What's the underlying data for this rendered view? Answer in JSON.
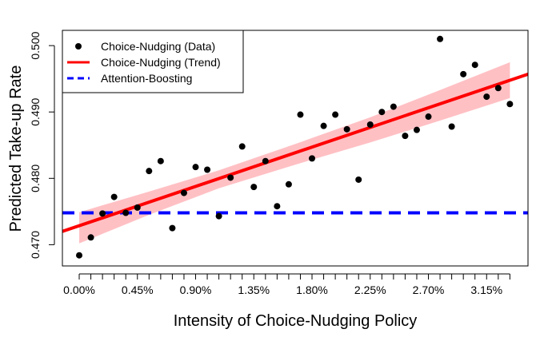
{
  "chart_data": {
    "type": "scatter",
    "title": "",
    "xlabel": "Intensity of Choice-Nudging Policy",
    "ylabel": "Predicted Take-up Rate",
    "xlim": [
      -0.0013,
      0.0347
    ],
    "ylim": [
      0.4668,
      0.5023
    ],
    "x_ticks": [
      {
        "value": 0.0,
        "label": "0.00%"
      },
      {
        "value": 0.0045,
        "label": "0.45%"
      },
      {
        "value": 0.009,
        "label": "0.90%"
      },
      {
        "value": 0.0135,
        "label": "1.35%"
      },
      {
        "value": 0.018,
        "label": "1.80%"
      },
      {
        "value": 0.0225,
        "label": "2.25%"
      },
      {
        "value": 0.027,
        "label": "2.70%"
      },
      {
        "value": 0.0315,
        "label": "3.15%"
      }
    ],
    "x_minor_ticks": [
      0.0,
      0.0009,
      0.0018,
      0.0027,
      0.0036,
      0.0045,
      0.0054,
      0.0063,
      0.0072,
      0.0081,
      0.009,
      0.0099,
      0.0108,
      0.0117,
      0.0126,
      0.0135,
      0.0144,
      0.0153,
      0.0162,
      0.0171,
      0.018,
      0.0189,
      0.0198,
      0.0207,
      0.0216,
      0.0225,
      0.0234,
      0.0243,
      0.0252,
      0.0261,
      0.027,
      0.0279,
      0.0288,
      0.0297,
      0.0306,
      0.0315,
      0.0324,
      0.0333
    ],
    "y_ticks": [
      {
        "value": 0.47,
        "label": "0.470"
      },
      {
        "value": 0.48,
        "label": "0.480"
      },
      {
        "value": 0.49,
        "label": "0.490"
      },
      {
        "value": 0.5,
        "label": "0.500"
      }
    ],
    "series": [
      {
        "name": "Choice-Nudging (Data)",
        "kind": "points",
        "color": "#000000",
        "points": [
          {
            "x": 0.0,
            "y": 0.4684
          },
          {
            "x": 0.0009,
            "y": 0.4711
          },
          {
            "x": 0.0018,
            "y": 0.4747
          },
          {
            "x": 0.0027,
            "y": 0.4772
          },
          {
            "x": 0.0036,
            "y": 0.4748
          },
          {
            "x": 0.0045,
            "y": 0.4756
          },
          {
            "x": 0.0054,
            "y": 0.4811
          },
          {
            "x": 0.0063,
            "y": 0.4826
          },
          {
            "x": 0.0072,
            "y": 0.4725
          },
          {
            "x": 0.0081,
            "y": 0.4778
          },
          {
            "x": 0.009,
            "y": 0.4817
          },
          {
            "x": 0.0099,
            "y": 0.4813
          },
          {
            "x": 0.0108,
            "y": 0.4743
          },
          {
            "x": 0.0117,
            "y": 0.4801
          },
          {
            "x": 0.0126,
            "y": 0.4848
          },
          {
            "x": 0.0135,
            "y": 0.4787
          },
          {
            "x": 0.0144,
            "y": 0.4826
          },
          {
            "x": 0.0153,
            "y": 0.4758
          },
          {
            "x": 0.0162,
            "y": 0.4791
          },
          {
            "x": 0.0171,
            "y": 0.4896
          },
          {
            "x": 0.018,
            "y": 0.483
          },
          {
            "x": 0.0189,
            "y": 0.4879
          },
          {
            "x": 0.0198,
            "y": 0.4896
          },
          {
            "x": 0.0207,
            "y": 0.4874
          },
          {
            "x": 0.0216,
            "y": 0.4798
          },
          {
            "x": 0.0225,
            "y": 0.4881
          },
          {
            "x": 0.0234,
            "y": 0.49
          },
          {
            "x": 0.0243,
            "y": 0.4908
          },
          {
            "x": 0.0252,
            "y": 0.4864
          },
          {
            "x": 0.0261,
            "y": 0.4873
          },
          {
            "x": 0.027,
            "y": 0.4893
          },
          {
            "x": 0.0279,
            "y": 0.501
          },
          {
            "x": 0.0288,
            "y": 0.4878
          },
          {
            "x": 0.0297,
            "y": 0.4957
          },
          {
            "x": 0.0306,
            "y": 0.4971
          },
          {
            "x": 0.0315,
            "y": 0.4923
          },
          {
            "x": 0.0324,
            "y": 0.4936
          },
          {
            "x": 0.0333,
            "y": 0.4912
          }
        ]
      },
      {
        "name": "Choice-Nudging (Trend)",
        "kind": "line",
        "color": "#ff0000",
        "band_color": "#ffc0c4",
        "line": [
          {
            "x": -0.0013,
            "y": 0.472
          },
          {
            "x": 0.0347,
            "y": 0.4957
          }
        ],
        "band_upper": [
          {
            "x": 0.0,
            "y": 0.4749
          },
          {
            "x": 0.0054,
            "y": 0.478
          },
          {
            "x": 0.0108,
            "y": 0.4812
          },
          {
            "x": 0.0166,
            "y": 0.4851
          },
          {
            "x": 0.0225,
            "y": 0.4892
          },
          {
            "x": 0.0279,
            "y": 0.4933
          },
          {
            "x": 0.0333,
            "y": 0.4975
          }
        ],
        "band_lower": [
          {
            "x": 0.0,
            "y": 0.4702
          },
          {
            "x": 0.0054,
            "y": 0.4745
          },
          {
            "x": 0.0108,
            "y": 0.4785
          },
          {
            "x": 0.0166,
            "y": 0.482
          },
          {
            "x": 0.0225,
            "y": 0.4854
          },
          {
            "x": 0.0279,
            "y": 0.4887
          },
          {
            "x": 0.0333,
            "y": 0.4921
          }
        ]
      },
      {
        "name": "Attention-Boosting",
        "kind": "hline",
        "color": "#0000ff",
        "y": 0.4748
      }
    ],
    "legend": {
      "position": "top-left",
      "entries": [
        {
          "label": "Choice-Nudging (Data)",
          "symbol": "point",
          "color": "#000000"
        },
        {
          "label": "Choice-Nudging (Trend)",
          "symbol": "line",
          "color": "#ff0000"
        },
        {
          "label": "Attention-Boosting",
          "symbol": "dashed-line",
          "color": "#0000ff"
        }
      ]
    },
    "grid": false
  }
}
